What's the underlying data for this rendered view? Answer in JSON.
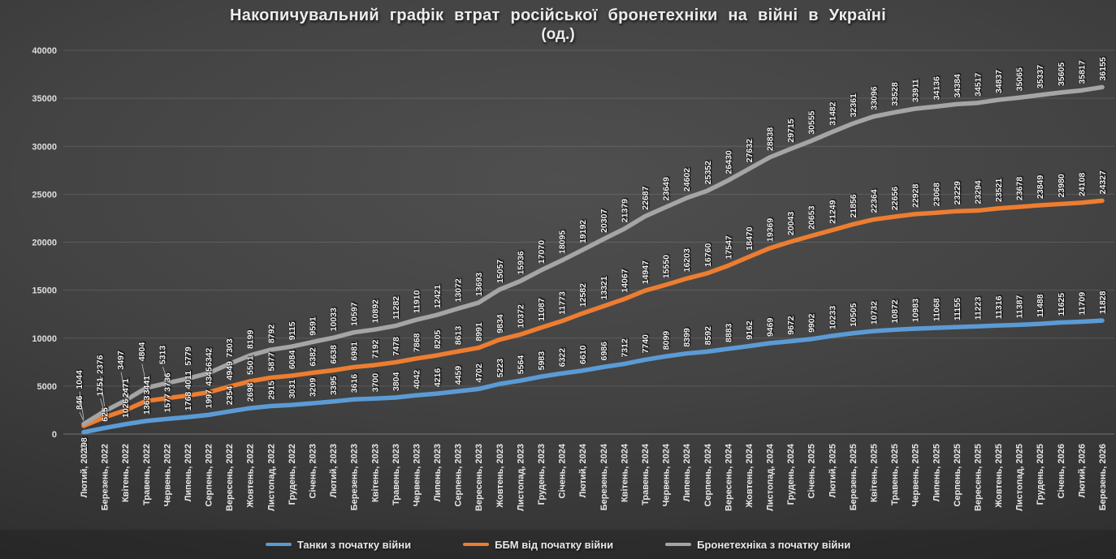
{
  "chart_data": {
    "type": "line",
    "title": "Накопичувальний графік втрат російської бронетехніки на війні в Україні",
    "subtitle": "(од.)",
    "xlabel": "",
    "ylabel": "",
    "ylim": [
      0,
      40000
    ],
    "ytick_step": 5000,
    "grid": true,
    "legend_position": "bottom",
    "data_labels": true,
    "categories": [
      "Лютий, 2022",
      "Березень, 2022",
      "Квітень, 2022",
      "Травень, 2022",
      "Червень, 2022",
      "Липень, 2022",
      "Серпень, 2022",
      "Вересень, 2022",
      "Жовтень, 2022",
      "Листопад, 2022",
      "Грудень, 2022",
      "Січень, 2023",
      "Лютий, 2023",
      "Березень, 2023",
      "Квітень, 2023",
      "Травень, 2023",
      "Червень, 2023",
      "Липень, 2023",
      "Серпень, 2023",
      "Вересень, 2023",
      "Жовтень, 2023",
      "Листопад, 2023",
      "Грудень, 2023",
      "Січень, 2024",
      "Лютий, 2024",
      "Березень, 2024",
      "Квітень, 2024",
      "Травень, 2024",
      "Червень, 2024",
      "Липень, 2024",
      "Серпень, 2024",
      "Вересень, 2024",
      "Жовтень, 2024",
      "Листопад, 2024",
      "Грудень, 2024",
      "Січень, 2025",
      "Лютий, 2025",
      "Березень, 2025",
      "Квітень, 2025",
      "Травень, 2025",
      "Червень, 2025",
      "Липень, 2025",
      "Серпень, 2025",
      "Вересень, 2025",
      "Жовтень, 2025",
      "Листопад, 2025",
      "Грудень, 2025",
      "Січень, 2026",
      "Лютий, 2026",
      "Березень, 2026"
    ],
    "series": [
      {
        "name": "Танки з початку війни",
        "color": "#5B9BD5",
        "values": [
          198,
          625,
          1026,
          1363,
          1577,
          1768,
          1997,
          2354,
          2698,
          2915,
          3031,
          3209,
          3395,
          3616,
          3700,
          3804,
          4042,
          4216,
          4459,
          4702,
          5223,
          5564,
          5983,
          6322,
          6610,
          6986,
          7312,
          7740,
          8099,
          8399,
          8592,
          8883,
          9162,
          9469,
          9672,
          9902,
          10233,
          10505,
          10732,
          10872,
          10983,
          11068,
          11155,
          11223,
          11316,
          11387,
          11488,
          11625,
          11709,
          11828
        ]
      },
      {
        "name": "ББМ від початку війни",
        "color": "#ED7D31",
        "values": [
          846,
          1751,
          2471,
          3441,
          3736,
          4011,
          4345,
          4949,
          5501,
          5877,
          6084,
          6382,
          6638,
          6981,
          7192,
          7478,
          7868,
          8205,
          8613,
          8991,
          9834,
          10372,
          11087,
          11773,
          12582,
          13321,
          14067,
          14947,
          15550,
          16203,
          16760,
          17547,
          18470,
          19369,
          20043,
          20653,
          21249,
          21856,
          22364,
          22656,
          22928,
          23068,
          23229,
          23294,
          23521,
          23678,
          23849,
          23980,
          24108,
          24327
        ]
      },
      {
        "name": "Бронетехніка з початку війни",
        "color": "#A5A5A5",
        "values": [
          1044,
          2376,
          3497,
          4804,
          5313,
          5779,
          6342,
          7303,
          8199,
          8792,
          9115,
          9591,
          10033,
          10597,
          10892,
          11282,
          11910,
          12421,
          13072,
          13693,
          15057,
          15936,
          17070,
          18095,
          19192,
          20307,
          21379,
          22687,
          23649,
          24602,
          25352,
          26430,
          27632,
          28838,
          29715,
          30555,
          31482,
          32361,
          33096,
          33528,
          33911,
          34136,
          34384,
          34517,
          34837,
          35065,
          35337,
          35605,
          35817,
          36155
        ]
      }
    ]
  }
}
